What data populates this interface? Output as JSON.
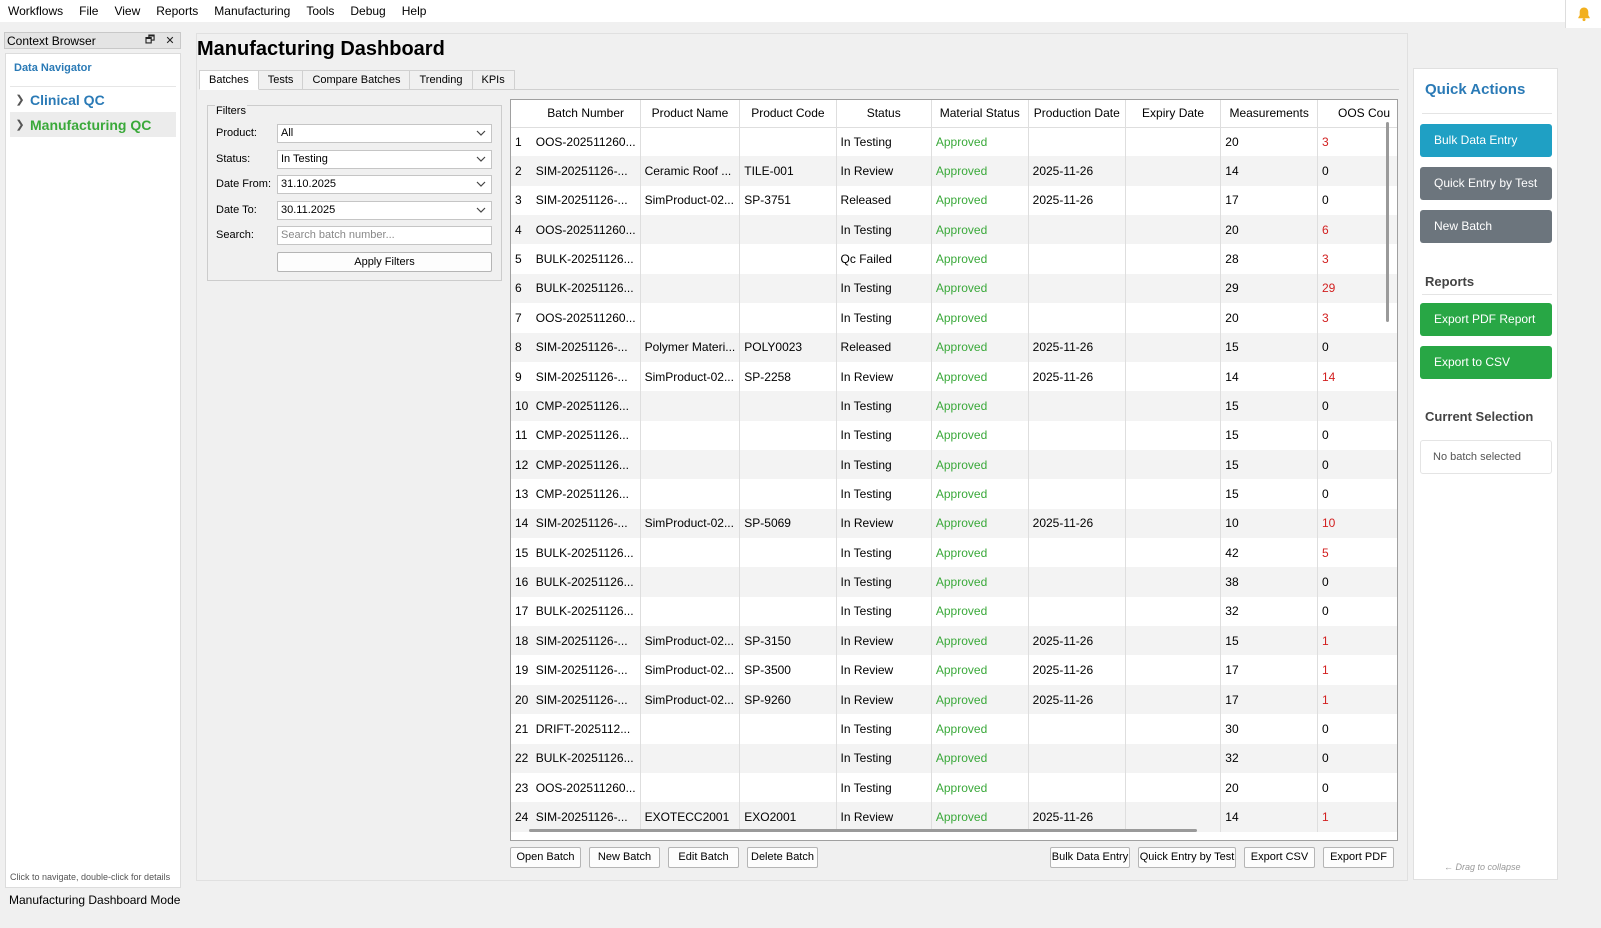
{
  "menu": [
    "Workflows",
    "File",
    "View",
    "Reports",
    "Manufacturing",
    "Tools",
    "Debug",
    "Help"
  ],
  "dock": {
    "title": "Context Browser",
    "float_glyph": "🗗",
    "close_glyph": "✕",
    "navigator_title": "Data Navigator",
    "items": [
      {
        "label": "Clinical QC",
        "color": "#2a7ab6"
      },
      {
        "label": "Manufacturing QC",
        "color": "#3aa93a"
      }
    ],
    "hint": "Click to navigate, double-click for details"
  },
  "statusbar": "Manufacturing Dashboard Mode",
  "main": {
    "title": "Manufacturing Dashboard",
    "tabs": [
      "Batches",
      "Tests",
      "Compare Batches",
      "Trending",
      "KPIs"
    ]
  },
  "filters": {
    "title": "Filters",
    "product_label": "Product:",
    "product_value": "All",
    "status_label": "Status:",
    "status_value": "In Testing",
    "date_from_label": "Date From:",
    "date_from_value": "31.10.2025",
    "date_to_label": "Date To:",
    "date_to_value": "30.11.2025",
    "search_label": "Search:",
    "search_placeholder": "Search batch number...",
    "apply_label": "Apply Filters"
  },
  "table": {
    "columns": [
      "Batch Number",
      "Product Name",
      "Product Code",
      "Status",
      "Material Status",
      "Production Date",
      "Expiry Date",
      "Measurements",
      "OOS Cou"
    ],
    "rows": [
      [
        "OOS-202511260...",
        "",
        "",
        "In Testing",
        "Approved",
        "",
        "",
        "20",
        "3"
      ],
      [
        "SIM-20251126-...",
        "Ceramic Roof ...",
        "TILE-001",
        "In Review",
        "Approved",
        "2025-11-26",
        "",
        "14",
        "0"
      ],
      [
        "SIM-20251126-...",
        "SimProduct-02...",
        "SP-3751",
        "Released",
        "Approved",
        "2025-11-26",
        "",
        "17",
        "0"
      ],
      [
        "OOS-202511260...",
        "",
        "",
        "In Testing",
        "Approved",
        "",
        "",
        "20",
        "6"
      ],
      [
        "BULK-20251126...",
        "",
        "",
        "Qc Failed",
        "Approved",
        "",
        "",
        "28",
        "3"
      ],
      [
        "BULK-20251126...",
        "",
        "",
        "In Testing",
        "Approved",
        "",
        "",
        "29",
        "29"
      ],
      [
        "OOS-202511260...",
        "",
        "",
        "In Testing",
        "Approved",
        "",
        "",
        "20",
        "3"
      ],
      [
        "SIM-20251126-...",
        "Polymer Materi...",
        "POLY0023",
        "Released",
        "Approved",
        "2025-11-26",
        "",
        "15",
        "0"
      ],
      [
        "SIM-20251126-...",
        "SimProduct-02...",
        "SP-2258",
        "In Review",
        "Approved",
        "2025-11-26",
        "",
        "14",
        "14"
      ],
      [
        "CMP-20251126...",
        "",
        "",
        "In Testing",
        "Approved",
        "",
        "",
        "15",
        "0"
      ],
      [
        "CMP-20251126...",
        "",
        "",
        "In Testing",
        "Approved",
        "",
        "",
        "15",
        "0"
      ],
      [
        "CMP-20251126...",
        "",
        "",
        "In Testing",
        "Approved",
        "",
        "",
        "15",
        "0"
      ],
      [
        "CMP-20251126...",
        "",
        "",
        "In Testing",
        "Approved",
        "",
        "",
        "15",
        "0"
      ],
      [
        "SIM-20251126-...",
        "SimProduct-02...",
        "SP-5069",
        "In Review",
        "Approved",
        "2025-11-26",
        "",
        "10",
        "10"
      ],
      [
        "BULK-20251126...",
        "",
        "",
        "In Testing",
        "Approved",
        "",
        "",
        "42",
        "5"
      ],
      [
        "BULK-20251126...",
        "",
        "",
        "In Testing",
        "Approved",
        "",
        "",
        "38",
        "0"
      ],
      [
        "BULK-20251126...",
        "",
        "",
        "In Testing",
        "Approved",
        "",
        "",
        "32",
        "0"
      ],
      [
        "SIM-20251126-...",
        "SimProduct-02...",
        "SP-3150",
        "In Review",
        "Approved",
        "2025-11-26",
        "",
        "15",
        "1"
      ],
      [
        "SIM-20251126-...",
        "SimProduct-02...",
        "SP-3500",
        "In Review",
        "Approved",
        "2025-11-26",
        "",
        "17",
        "1"
      ],
      [
        "SIM-20251126-...",
        "SimProduct-02...",
        "SP-9260",
        "In Review",
        "Approved",
        "2025-11-26",
        "",
        "17",
        "1"
      ],
      [
        "DRIFT-2025112...",
        "",
        "",
        "In Testing",
        "Approved",
        "",
        "",
        "30",
        "0"
      ],
      [
        "BULK-20251126...",
        "",
        "",
        "In Testing",
        "Approved",
        "",
        "",
        "32",
        "0"
      ],
      [
        "OOS-202511260...",
        "",
        "",
        "In Testing",
        "Approved",
        "",
        "",
        "20",
        "0"
      ],
      [
        "SIM-20251126-...",
        "EXOTECC2001",
        "EXO2001",
        "In Review",
        "Approved",
        "2025-11-26",
        "",
        "14",
        "1"
      ]
    ]
  },
  "bottom_buttons": {
    "open_batch": "Open Batch",
    "new_batch": "New Batch",
    "edit_batch": "Edit Batch",
    "delete_batch": "Delete Batch",
    "bulk_data_entry": "Bulk Data Entry",
    "quick_entry": "Quick Entry by Test",
    "export_csv": "Export CSV",
    "export_pdf": "Export PDF"
  },
  "quick_actions": {
    "title": "Quick Actions",
    "bulk_data_entry": "Bulk Data Entry",
    "quick_entry": "Quick Entry by Test",
    "new_batch": "New Batch",
    "reports_title": "Reports",
    "export_pdf": "Export PDF Report",
    "export_csv": "Export to CSV",
    "selection_title": "Current Selection",
    "selection_value": "No batch selected",
    "drag_hint": "← Drag to collapse"
  },
  "colors": {
    "accent_blue": "#2a7ab6",
    "teal_button": "#1fa0c4",
    "gray_button": "#6c757d",
    "green_button": "#28a745",
    "approved_green": "#3aa93a",
    "oos_red": "#d21f1f",
    "bell": "#f2b01e"
  },
  "icons": [
    "bell-icon",
    "float-icon",
    "close-icon",
    "chevron-right-icon",
    "chevron-down-icon"
  ]
}
